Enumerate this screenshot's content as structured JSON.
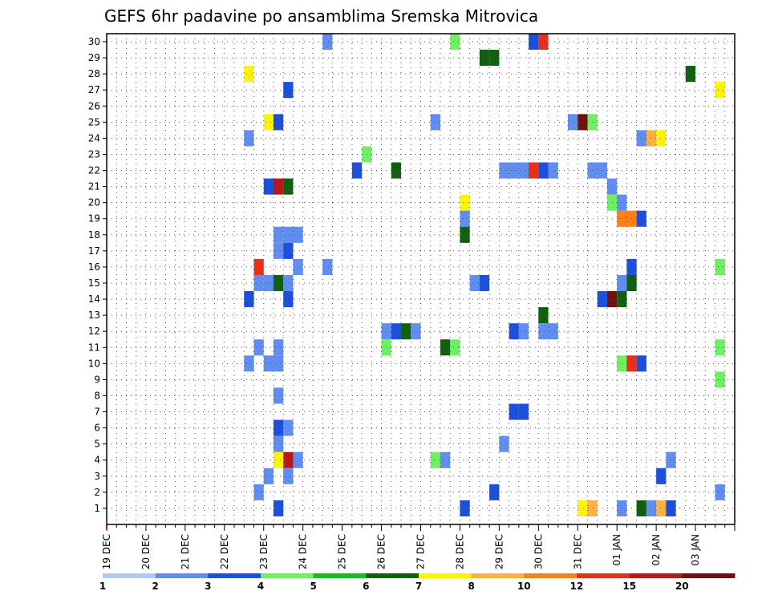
{
  "chart_data": {
    "type": "heatmap",
    "title": "GEFS 6hr padavine po ansamblima Sremska Mitrovica",
    "ylim": [
      0,
      30
    ],
    "y_ticks": [
      1,
      2,
      3,
      4,
      5,
      6,
      7,
      8,
      9,
      10,
      11,
      12,
      13,
      14,
      15,
      16,
      17,
      18,
      19,
      20,
      21,
      22,
      23,
      24,
      25,
      26,
      27,
      28,
      29,
      30
    ],
    "x_ticks": [
      "19 DEC",
      "20 DEC",
      "21 DEC",
      "22 DEC",
      "23 DEC",
      "24 DEC",
      "25 DEC",
      "26 DEC",
      "27 DEC",
      "28 DEC",
      "29 DEC",
      "30 DEC",
      "31 DEC",
      "01 JAN",
      "02 JAN",
      "03 JAN"
    ],
    "x_start": "19 DEC 00Z",
    "x_step_hours": 6,
    "grid": true,
    "colorbar": {
      "labels": [
        "1",
        "2",
        "3",
        "4",
        "5",
        "6",
        "7",
        "8",
        "10",
        "12",
        "15",
        "20"
      ],
      "colors": [
        "#b4c8f8",
        "#5f8ef0",
        "#1c4fdc",
        "#6ef060",
        "#10c020",
        "#106010",
        "#fff400",
        "#ffb040",
        "#ff8018",
        "#e83018",
        "#b81818",
        "#701010"
      ]
    },
    "cells": [
      [
        30,
        22,
        1
      ],
      [
        30,
        35,
        3
      ],
      [
        30,
        43,
        2
      ],
      [
        30,
        44,
        9
      ],
      [
        29,
        38,
        5
      ],
      [
        29,
        39,
        5
      ],
      [
        28,
        14,
        6
      ],
      [
        28,
        59,
        5
      ],
      [
        27,
        18,
        2
      ],
      [
        27,
        62,
        6
      ],
      [
        25,
        16,
        6
      ],
      [
        25,
        17,
        2
      ],
      [
        25,
        33,
        1
      ],
      [
        25,
        47,
        1
      ],
      [
        25,
        48,
        11
      ],
      [
        25,
        49,
        3
      ],
      [
        24,
        14,
        1
      ],
      [
        24,
        54,
        1
      ],
      [
        24,
        55,
        7
      ],
      [
        24,
        56,
        6
      ],
      [
        23,
        26,
        3
      ],
      [
        22,
        25,
        2
      ],
      [
        22,
        29,
        5
      ],
      [
        22,
        40,
        1
      ],
      [
        22,
        41,
        1
      ],
      [
        22,
        42,
        1
      ],
      [
        22,
        43,
        9
      ],
      [
        22,
        44,
        2
      ],
      [
        22,
        45,
        1
      ],
      [
        22,
        49,
        1
      ],
      [
        22,
        50,
        1
      ],
      [
        21,
        16,
        2
      ],
      [
        21,
        17,
        10
      ],
      [
        21,
        18,
        5
      ],
      [
        21,
        51,
        1
      ],
      [
        20,
        36,
        6
      ],
      [
        20,
        51,
        3
      ],
      [
        20,
        52,
        1
      ],
      [
        19,
        36,
        1
      ],
      [
        19,
        52,
        8
      ],
      [
        19,
        53,
        8
      ],
      [
        19,
        54,
        2
      ],
      [
        18,
        17,
        1
      ],
      [
        18,
        18,
        1
      ],
      [
        18,
        19,
        1
      ],
      [
        18,
        36,
        5
      ],
      [
        17,
        17,
        1
      ],
      [
        17,
        18,
        2
      ],
      [
        16,
        15,
        9
      ],
      [
        16,
        19,
        1
      ],
      [
        16,
        22,
        1
      ],
      [
        16,
        53,
        2
      ],
      [
        16,
        62,
        3
      ],
      [
        15,
        15,
        1
      ],
      [
        15,
        16,
        1
      ],
      [
        15,
        17,
        5
      ],
      [
        15,
        18,
        1
      ],
      [
        15,
        37,
        1
      ],
      [
        15,
        38,
        2
      ],
      [
        15,
        52,
        1
      ],
      [
        15,
        53,
        5
      ],
      [
        14,
        14,
        2
      ],
      [
        14,
        18,
        2
      ],
      [
        14,
        50,
        2
      ],
      [
        14,
        51,
        11
      ],
      [
        14,
        52,
        5
      ],
      [
        13,
        44,
        5
      ],
      [
        12,
        28,
        1
      ],
      [
        12,
        29,
        2
      ],
      [
        12,
        30,
        5
      ],
      [
        12,
        31,
        1
      ],
      [
        12,
        41,
        2
      ],
      [
        12,
        42,
        1
      ],
      [
        12,
        44,
        1
      ],
      [
        12,
        45,
        1
      ],
      [
        11,
        15,
        1
      ],
      [
        11,
        17,
        1
      ],
      [
        11,
        28,
        3
      ],
      [
        11,
        34,
        5
      ],
      [
        11,
        35,
        3
      ],
      [
        11,
        62,
        3
      ],
      [
        10,
        14,
        1
      ],
      [
        10,
        16,
        1
      ],
      [
        10,
        17,
        1
      ],
      [
        10,
        52,
        3
      ],
      [
        10,
        53,
        9
      ],
      [
        10,
        54,
        2
      ],
      [
        9,
        62,
        3
      ],
      [
        8,
        17,
        1
      ],
      [
        7,
        41,
        2
      ],
      [
        7,
        42,
        2
      ],
      [
        6,
        17,
        2
      ],
      [
        6,
        18,
        1
      ],
      [
        5,
        17,
        1
      ],
      [
        5,
        40,
        1
      ],
      [
        4,
        17,
        6
      ],
      [
        4,
        18,
        10
      ],
      [
        4,
        19,
        1
      ],
      [
        4,
        33,
        3
      ],
      [
        4,
        34,
        1
      ],
      [
        4,
        57,
        1
      ],
      [
        3,
        16,
        1
      ],
      [
        3,
        18,
        1
      ],
      [
        3,
        56,
        2
      ],
      [
        2,
        15,
        1
      ],
      [
        2,
        39,
        2
      ],
      [
        2,
        62,
        1
      ],
      [
        1,
        17,
        2
      ],
      [
        1,
        36,
        2
      ],
      [
        1,
        48,
        6
      ],
      [
        1,
        49,
        7
      ],
      [
        1,
        52,
        1
      ],
      [
        1,
        54,
        5
      ],
      [
        1,
        55,
        1
      ],
      [
        1,
        56,
        7
      ],
      [
        1,
        57,
        2
      ]
    ]
  }
}
